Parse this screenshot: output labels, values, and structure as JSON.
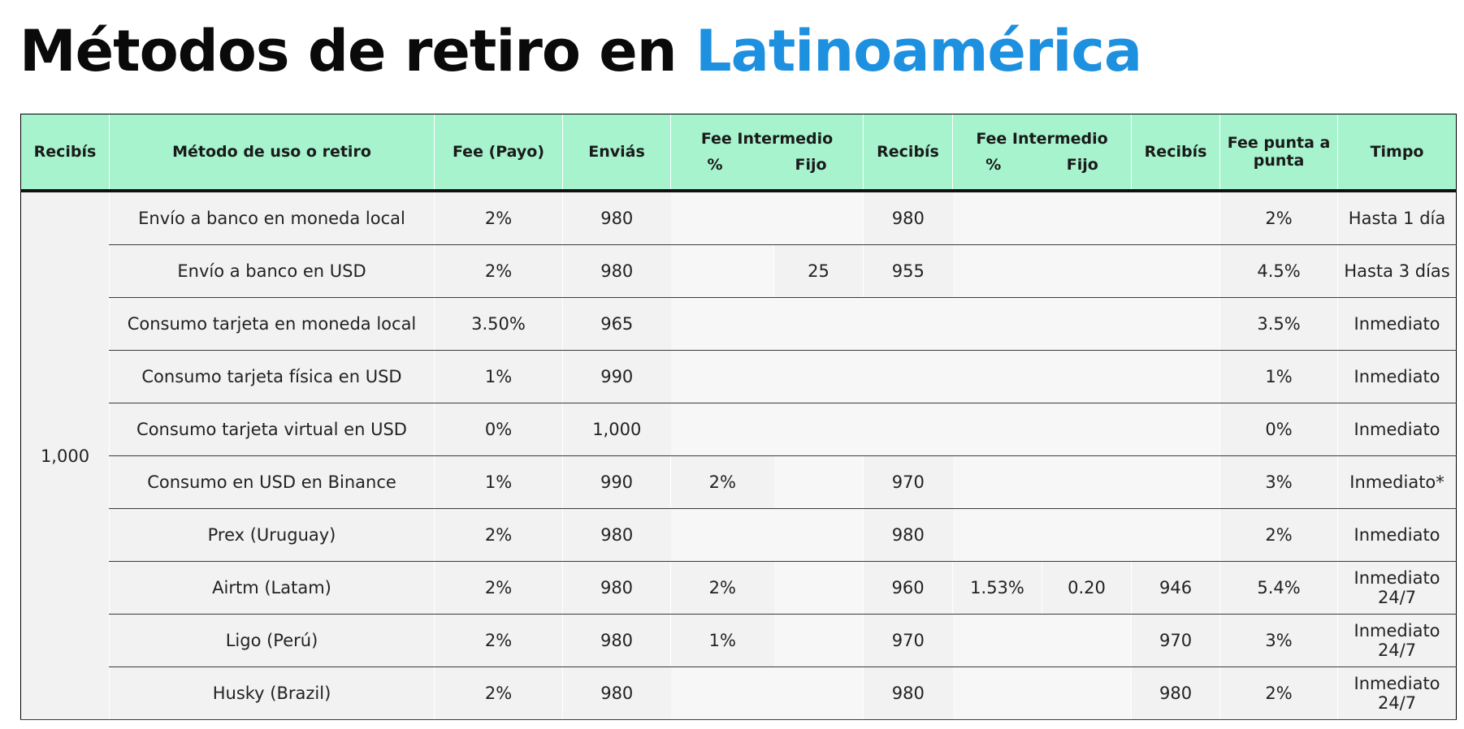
{
  "title": {
    "main": "Métodos de retiro en ",
    "accent": "Latinoamérica"
  },
  "colors": {
    "header_bg": "#a6f3ce",
    "title_accent": "#1e90e0",
    "cell_bg": "#f2f2f2"
  },
  "table": {
    "headers": {
      "recibis_1": "Recibís",
      "metodo": "Método de uso o retiro",
      "fee_payo": "Fee (Payo)",
      "envias": "Enviás",
      "fee_intermedio_1": "Fee Intermedio",
      "fee_intermedio_1_pct": "%",
      "fee_intermedio_1_fijo": "Fijo",
      "recibis_2": "Recibís",
      "fee_intermedio_2": "Fee Intermedio",
      "fee_intermedio_2_pct": "%",
      "fee_intermedio_2_fijo": "Fijo",
      "recibis_3": "Recibís",
      "fee_punta": "Fee punta a punta",
      "tiempo": "Timpo"
    },
    "recibis_amount": "1,000",
    "rows": [
      {
        "metodo": "Envío a banco en moneda local",
        "fee_payo": "2%",
        "envias": "980",
        "fi1_pct": "",
        "fi1_fijo": "",
        "recibis2": "980",
        "fi2_pct": "",
        "fi2_fijo": "",
        "recibis3": "",
        "fee_punta": "2%",
        "tiempo": "Hasta 1 día"
      },
      {
        "metodo": "Envío a banco en USD",
        "fee_payo": "2%",
        "envias": "980",
        "fi1_pct": "",
        "fi1_fijo": "25",
        "recibis2": "955",
        "fi2_pct": "",
        "fi2_fijo": "",
        "recibis3": "",
        "fee_punta": "4.5%",
        "tiempo": "Hasta 3 días"
      },
      {
        "metodo": "Consumo tarjeta en moneda local",
        "fee_payo": "3.50%",
        "envias": "965",
        "fi1_pct": "",
        "fi1_fijo": "",
        "recibis2": "",
        "fi2_pct": "",
        "fi2_fijo": "",
        "recibis3": "",
        "fee_punta": "3.5%",
        "tiempo": "Inmediato"
      },
      {
        "metodo": "Consumo tarjeta física en USD",
        "fee_payo": "1%",
        "envias": "990",
        "fi1_pct": "",
        "fi1_fijo": "",
        "recibis2": "",
        "fi2_pct": "",
        "fi2_fijo": "",
        "recibis3": "",
        "fee_punta": "1%",
        "tiempo": "Inmediato"
      },
      {
        "metodo": "Consumo tarjeta virtual en USD",
        "fee_payo": "0%",
        "envias": "1,000",
        "fi1_pct": "",
        "fi1_fijo": "",
        "recibis2": "",
        "fi2_pct": "",
        "fi2_fijo": "",
        "recibis3": "",
        "fee_punta": "0%",
        "tiempo": "Inmediato"
      },
      {
        "metodo": "Consumo en USD en Binance",
        "fee_payo": "1%",
        "envias": "990",
        "fi1_pct": "2%",
        "fi1_fijo": "",
        "recibis2": "970",
        "fi2_pct": "",
        "fi2_fijo": "",
        "recibis3": "",
        "fee_punta": "3%",
        "tiempo": "Inmediato*"
      },
      {
        "metodo": "Prex (Uruguay)",
        "fee_payo": "2%",
        "envias": "980",
        "fi1_pct": "",
        "fi1_fijo": "",
        "recibis2": "980",
        "fi2_pct": "",
        "fi2_fijo": "",
        "recibis3": "",
        "fee_punta": "2%",
        "tiempo": "Inmediato"
      },
      {
        "metodo": "Airtm (Latam)",
        "fee_payo": "2%",
        "envias": "980",
        "fi1_pct": "2%",
        "fi1_fijo": "",
        "recibis2": "960",
        "fi2_pct": "1.53%",
        "fi2_fijo": "0.20",
        "recibis3": "946",
        "fee_punta": "5.4%",
        "tiempo": "Inmediato 24/7"
      },
      {
        "metodo": "Ligo (Perú)",
        "fee_payo": "2%",
        "envias": "980",
        "fi1_pct": "1%",
        "fi1_fijo": "",
        "recibis2": "970",
        "fi2_pct": "",
        "fi2_fijo": "",
        "recibis3": "970",
        "fee_punta": "3%",
        "tiempo": "Inmediato 24/7"
      },
      {
        "metodo": "Husky (Brazil)",
        "fee_payo": "2%",
        "envias": "980",
        "fi1_pct": "",
        "fi1_fijo": "",
        "recibis2": "980",
        "fi2_pct": "",
        "fi2_fijo": "",
        "recibis3": "980",
        "fee_punta": "2%",
        "tiempo": "Inmediato 24/7"
      }
    ]
  }
}
